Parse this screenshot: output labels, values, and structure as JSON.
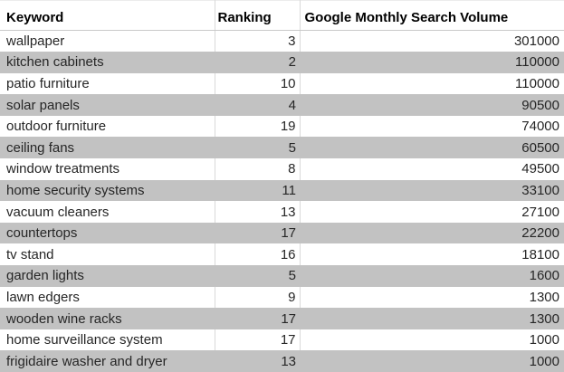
{
  "table": {
    "columns": [
      {
        "label": "Keyword"
      },
      {
        "label": "Ranking"
      },
      {
        "label": "Google Monthly Search Volume"
      }
    ],
    "rows": [
      {
        "keyword": "wallpaper",
        "ranking": "3",
        "volume": "301000"
      },
      {
        "keyword": "kitchen cabinets",
        "ranking": "2",
        "volume": "110000"
      },
      {
        "keyword": "patio furniture",
        "ranking": "10",
        "volume": "110000"
      },
      {
        "keyword": "solar panels",
        "ranking": "4",
        "volume": "90500"
      },
      {
        "keyword": "outdoor furniture",
        "ranking": "19",
        "volume": "74000"
      },
      {
        "keyword": "ceiling fans",
        "ranking": "5",
        "volume": "60500"
      },
      {
        "keyword": "window treatments",
        "ranking": "8",
        "volume": "49500"
      },
      {
        "keyword": "home security systems",
        "ranking": "11",
        "volume": "33100"
      },
      {
        "keyword": "vacuum cleaners",
        "ranking": "13",
        "volume": "27100"
      },
      {
        "keyword": "countertops",
        "ranking": "17",
        "volume": "22200"
      },
      {
        "keyword": "tv stand",
        "ranking": "16",
        "volume": "18100"
      },
      {
        "keyword": "garden lights",
        "ranking": "5",
        "volume": "1600"
      },
      {
        "keyword": "lawn edgers",
        "ranking": "9",
        "volume": "1300"
      },
      {
        "keyword": "wooden wine racks",
        "ranking": "17",
        "volume": "1300"
      },
      {
        "keyword": "home surveillance system",
        "ranking": "17",
        "volume": "1000"
      },
      {
        "keyword": "frigidaire washer and dryer",
        "ranking": "13",
        "volume": "1000"
      }
    ]
  },
  "colors": {
    "row_stripe": "#c2c2c2",
    "gridline": "#d9d9d9",
    "header_text": "#000000",
    "body_text": "#262626"
  },
  "chart_data": {
    "type": "table",
    "title": "",
    "columns": [
      "Keyword",
      "Ranking",
      "Google Monthly Search Volume"
    ],
    "rows": [
      [
        "wallpaper",
        3,
        301000
      ],
      [
        "kitchen cabinets",
        2,
        110000
      ],
      [
        "patio furniture",
        10,
        110000
      ],
      [
        "solar panels",
        4,
        90500
      ],
      [
        "outdoor furniture",
        19,
        74000
      ],
      [
        "ceiling fans",
        5,
        60500
      ],
      [
        "window treatments",
        8,
        49500
      ],
      [
        "home security systems",
        11,
        33100
      ],
      [
        "vacuum cleaners",
        13,
        27100
      ],
      [
        "countertops",
        17,
        22200
      ],
      [
        "tv stand",
        16,
        18100
      ],
      [
        "garden lights",
        5,
        1600
      ],
      [
        "lawn edgers",
        9,
        1300
      ],
      [
        "wooden wine racks",
        17,
        1300
      ],
      [
        "home surveillance system",
        17,
        1000
      ],
      [
        "frigidaire washer and dryer",
        13,
        1000
      ]
    ],
    "layout_hints": {
      "striped_rows": true,
      "stripe_color": "#c2c2c2",
      "numeric_columns_right_aligned": true
    }
  }
}
